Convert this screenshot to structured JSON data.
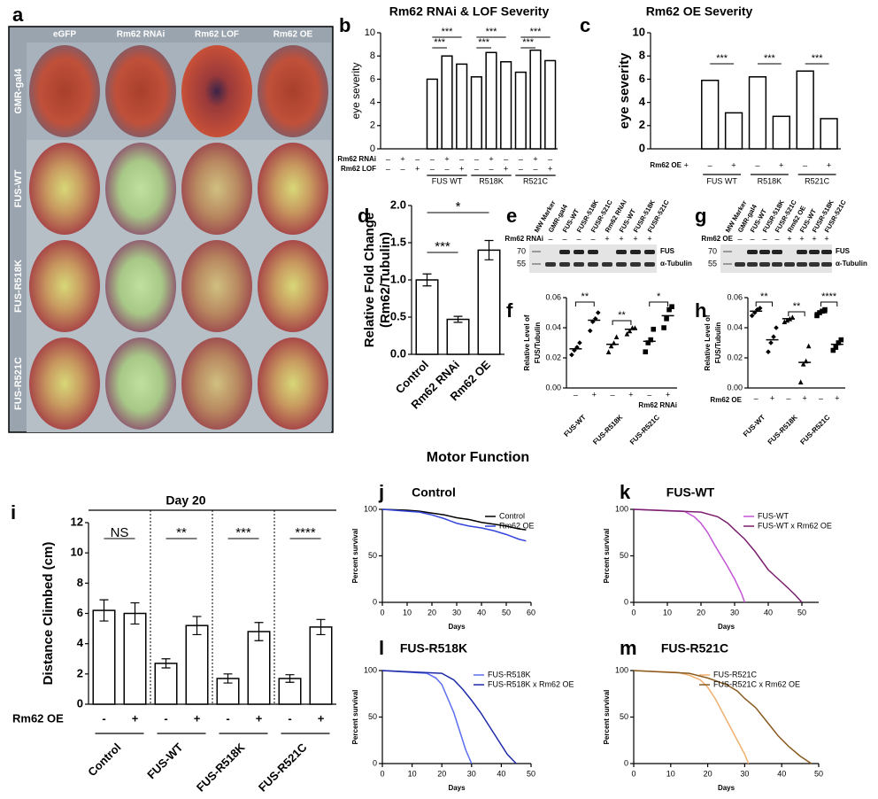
{
  "section_title": "Motor Function",
  "eye_panel": {
    "panel": "a",
    "columns": [
      "eGFP",
      "Rm62 RNAi",
      "Rm62 LOF",
      "Rm62 OE"
    ],
    "rows": [
      "GMR-gal4",
      "FUS-WT",
      "FUS-R518K",
      "FUS-R521C"
    ]
  },
  "blots": [
    {
      "panel": "e",
      "lanes": [
        "MW Marker",
        "GMR-gal4",
        "FUS-WT",
        "FUSR-518K",
        "FUSR-521C",
        "Rm62 RNAi",
        "FUS-WT",
        "FUSR-518K",
        "FUSR-521C"
      ],
      "row_label": "Rm62 RNAi",
      "signs": [
        null,
        "–",
        "–",
        "–",
        "–",
        "+",
        "+",
        "+",
        "+"
      ],
      "markers": [
        "70",
        "55"
      ],
      "bands": [
        "FUS",
        "α-Tubulin"
      ]
    },
    {
      "panel": "g",
      "lanes": [
        "MW Marker",
        "GMR-gal4",
        "FUS-WT",
        "FUSR-518K",
        "FUSR-521C",
        "Rm62 OE",
        "FUS-WT",
        "FUSR-518K",
        "FUSR-521C"
      ],
      "row_label": "Rm62 OE",
      "signs": [
        null,
        "–",
        "–",
        "–",
        "–",
        "+",
        "+",
        "+",
        "+"
      ],
      "markers": [
        "70",
        "55"
      ],
      "bands": [
        "FUS",
        "α-Tubulin"
      ]
    }
  ],
  "chart_data": [
    {
      "type": "bar",
      "panel": "b",
      "title": "Rm62 RNAi & LOF Severity",
      "y_label": "eye severity",
      "ylim": [
        0,
        10
      ],
      "yticks": [
        0,
        2,
        4,
        6,
        8,
        10
      ],
      "values": [
        0,
        0,
        0,
        6.0,
        8.0,
        7.3,
        6.2,
        8.3,
        7.5,
        6.6,
        8.5,
        7.6
      ],
      "condition_rows": [
        {
          "name": "Rm62 RNAi",
          "signs": [
            "–",
            "+",
            "–",
            "–",
            "+",
            "–",
            "–",
            "+",
            "–",
            "–",
            "+",
            "–"
          ]
        },
        {
          "name": "Rm62 LOF",
          "signs": [
            "–",
            "–",
            "+",
            "–",
            "–",
            "+",
            "–",
            "–",
            "+",
            "–",
            "–",
            "+"
          ]
        }
      ],
      "groups": [
        "FUS WT",
        "R518K",
        "R521C"
      ],
      "significance": [
        "***",
        "***",
        "***",
        "***",
        "***",
        "***"
      ]
    },
    {
      "type": "bar",
      "panel": "c",
      "title": "Rm62 OE Severity",
      "y_label": "eye severity",
      "ylim": [
        0,
        10
      ],
      "yticks": [
        0,
        2,
        4,
        6,
        8,
        10
      ],
      "values": [
        0,
        0,
        5.9,
        3.1,
        6.2,
        2.8,
        6.7,
        2.6
      ],
      "condition_rows": [
        {
          "name": "Rm62 OE",
          "signs": [
            null,
            "+",
            "–",
            "+",
            "–",
            "+",
            "–",
            "+"
          ]
        }
      ],
      "groups": [
        "FUS WT",
        "R518K",
        "R521C"
      ],
      "significance": [
        "***",
        "***",
        "***"
      ]
    },
    {
      "type": "bar",
      "panel": "d",
      "y_label": [
        "Relative Fold Change",
        "(Rm62/Tubulin)"
      ],
      "ylim": [
        0,
        2
      ],
      "yticks": [
        {
          "value": 0,
          "label": "0.0"
        },
        0.5,
        {
          "value": 1,
          "label": "1.0"
        },
        1.5,
        {
          "value": 2,
          "label": "2.0"
        }
      ],
      "categories": [
        "Control",
        "Rm62 RNAi",
        "Rm62 OE"
      ],
      "values": [
        1.0,
        0.47,
        1.4
      ],
      "errors": [
        0.08,
        0.04,
        0.13
      ],
      "significance": [
        "***",
        "*"
      ]
    },
    {
      "type": "strip",
      "panel": "f",
      "y_label": [
        "Relative Level of",
        "FUS/Tubulin"
      ],
      "ylim": [
        0,
        0.06
      ],
      "yticks": [
        {
          "value": 0,
          "label": "0.00"
        },
        0.02,
        0.04,
        0.06
      ],
      "points": [
        [
          0.022,
          0.025,
          0.027,
          0.03
        ],
        [
          0.038,
          0.044,
          0.046,
          0.05
        ],
        [
          0.024,
          0.028,
          0.03,
          0.034
        ],
        [
          0.036,
          0.038,
          0.04,
          0.04
        ],
        [
          0.024,
          0.03,
          0.032,
          0.039
        ],
        [
          0.04,
          0.046,
          0.052,
          0.054
        ]
      ],
      "means": [
        0.026,
        0.045,
        0.029,
        0.039,
        0.031,
        0.048
      ],
      "condition_rows": [
        {
          "name": "Rm62 RNAi",
          "signs": [
            "–",
            "+",
            "–",
            "+",
            "–",
            "+"
          ]
        }
      ],
      "groups": [
        "FUS-WT",
        "FUS-R518K",
        "FUS-R521C"
      ],
      "significance": [
        "**",
        "**",
        "*"
      ]
    },
    {
      "type": "strip",
      "panel": "h",
      "y_label": [
        "Relative Level of",
        "FUS/Tubulin"
      ],
      "ylim": [
        0,
        0.06
      ],
      "yticks": [
        {
          "value": 0,
          "label": "0.00"
        },
        0.02,
        0.04,
        0.06
      ],
      "points": [
        [
          0.048,
          0.05,
          0.052,
          0.053
        ],
        [
          0.024,
          0.03,
          0.034,
          0.04
        ],
        [
          0.044,
          0.045,
          0.046,
          0.047
        ],
        [
          0.004,
          0.016,
          0.018,
          0.028
        ],
        [
          0.048,
          0.05,
          0.051,
          0.052
        ],
        [
          0.025,
          0.027,
          0.03,
          0.032
        ]
      ],
      "means": [
        0.051,
        0.032,
        0.046,
        0.017,
        0.05,
        0.029
      ],
      "condition_rows": [
        {
          "name": "Rm62 OE",
          "signs": [
            "–",
            "+",
            "–",
            "+",
            "–",
            "+"
          ]
        }
      ],
      "groups": [
        "FUS-WT",
        "FUS-R518K",
        "FUS-R521C"
      ],
      "significance": [
        "**",
        "**",
        "****"
      ]
    },
    {
      "type": "bar",
      "panel": "i",
      "subtitle": "Day 20",
      "y_label": "Distance Climbed (cm)",
      "ylim": [
        0,
        12
      ],
      "yticks": [
        0,
        2,
        4,
        6,
        8,
        10,
        12
      ],
      "values": [
        6.2,
        6.0,
        2.7,
        5.2,
        1.7,
        4.8,
        1.7,
        5.1
      ],
      "errors": [
        0.7,
        0.7,
        0.3,
        0.6,
        0.3,
        0.6,
        0.25,
        0.5
      ],
      "condition_rows": [
        {
          "name": "Rm62 OE",
          "signs": [
            "-",
            "+",
            "-",
            "+",
            "-",
            "+",
            "-",
            "+"
          ]
        }
      ],
      "groups": [
        "Control",
        "FUS-WT",
        "FUS-R518K",
        "FUS-R521C"
      ],
      "significance": [
        "NS",
        "**",
        "***",
        "****"
      ]
    },
    {
      "type": "line",
      "panel": "j",
      "title": "Control",
      "x_label": "Days",
      "y_label": "Percent survival",
      "xlim": [
        0,
        60
      ],
      "xticks": [
        0,
        10,
        20,
        30,
        40,
        50,
        60
      ],
      "ylim": [
        0,
        100
      ],
      "yticks": [
        0,
        50,
        100
      ],
      "series": [
        {
          "name": "Control",
          "color": "#000000",
          "x": [
            0,
            10,
            15,
            20,
            25,
            30,
            35,
            40,
            45,
            50,
            55,
            58
          ],
          "values": [
            100,
            99,
            98,
            96,
            94,
            91,
            89,
            86,
            84,
            82,
            79,
            78
          ]
        },
        {
          "name": "Rm62 OE",
          "color": "#3344dd",
          "x": [
            0,
            10,
            15,
            20,
            25,
            30,
            35,
            40,
            45,
            50,
            55,
            58
          ],
          "values": [
            100,
            98,
            97,
            94,
            90,
            85,
            82,
            80,
            77,
            73,
            68,
            66
          ]
        }
      ]
    },
    {
      "type": "line",
      "panel": "k",
      "title": "FUS-WT",
      "x_label": "Days",
      "y_label": "Percent survival",
      "xlim": [
        0,
        55
      ],
      "xticks": [
        0,
        10,
        20,
        30,
        40,
        50
      ],
      "ylim": [
        0,
        100
      ],
      "yticks": [
        0,
        50,
        100
      ],
      "series": [
        {
          "name": "FUS-WT",
          "color": "#c455d6",
          "x": [
            0,
            15,
            18,
            20,
            22,
            24,
            26,
            28,
            30,
            32,
            33
          ],
          "values": [
            100,
            98,
            92,
            85,
            75,
            62,
            50,
            38,
            25,
            10,
            0
          ]
        },
        {
          "name": "FUS-WT x Rm62 OE",
          "color": "#7a1f6e",
          "x": [
            0,
            20,
            25,
            28,
            30,
            33,
            36,
            38,
            40,
            43,
            46,
            48,
            50
          ],
          "values": [
            100,
            97,
            92,
            85,
            78,
            68,
            55,
            45,
            35,
            25,
            15,
            8,
            0
          ]
        }
      ]
    },
    {
      "type": "line",
      "panel": "l",
      "title": "FUS-R518K",
      "x_label": "Days",
      "y_label": "Percent survival",
      "xlim": [
        0,
        50
      ],
      "xticks": [
        0,
        10,
        20,
        30,
        40,
        50
      ],
      "ylim": [
        0,
        100
      ],
      "yticks": [
        0,
        50,
        100
      ],
      "series": [
        {
          "name": "FUS-R518K",
          "color": "#5a6ef0",
          "x": [
            0,
            15,
            18,
            20,
            22,
            24,
            26,
            28,
            30
          ],
          "values": [
            100,
            97,
            92,
            85,
            70,
            55,
            35,
            15,
            0
          ]
        },
        {
          "name": "FUS-R518K x Rm62 OE",
          "color": "#1e2aa8",
          "x": [
            0,
            20,
            24,
            27,
            30,
            33,
            36,
            39,
            42,
            45
          ],
          "values": [
            100,
            97,
            90,
            80,
            68,
            55,
            40,
            25,
            10,
            0
          ]
        }
      ]
    },
    {
      "type": "line",
      "panel": "m",
      "title": "FUS-R521C",
      "x_label": "Days",
      "y_label": "Percent survival",
      "xlim": [
        0,
        50
      ],
      "xticks": [
        0,
        10,
        20,
        30,
        40,
        50
      ],
      "ylim": [
        0,
        100
      ],
      "yticks": [
        0,
        50,
        100
      ],
      "series": [
        {
          "name": "FUS-R521C",
          "color": "#f0b070",
          "x": [
            0,
            12,
            15,
            18,
            20,
            22,
            24,
            26,
            28,
            30,
            31
          ],
          "values": [
            100,
            98,
            95,
            90,
            82,
            70,
            55,
            40,
            25,
            10,
            0
          ]
        },
        {
          "name": "FUS-R521C x Rm62 OE",
          "color": "#8a5a20",
          "x": [
            0,
            15,
            20,
            25,
            28,
            30,
            33,
            36,
            39,
            42,
            45,
            48
          ],
          "values": [
            100,
            97,
            92,
            85,
            78,
            70,
            60,
            45,
            30,
            18,
            8,
            0
          ]
        }
      ]
    }
  ]
}
